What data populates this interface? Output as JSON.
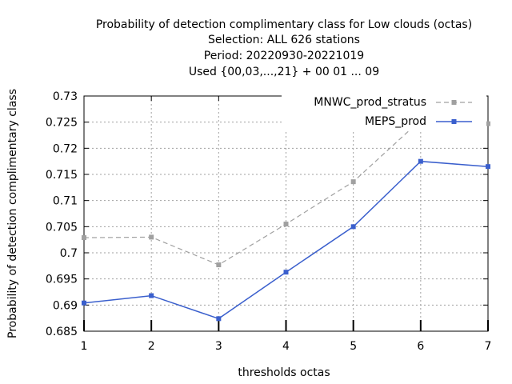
{
  "chart_data": {
    "type": "line",
    "title": [
      "Probability of detection complimentary class  for Low clouds (octas)",
      "Selection: ALL    626 stations",
      "Period: 20220930-20221019",
      "Used {00,03,...,21} + 00 01 ... 09"
    ],
    "xlabel": "thresholds octas",
    "ylabel": "Probability of detection complimentary class",
    "x": [
      1,
      2,
      3,
      4,
      5,
      6,
      7
    ],
    "xlim": [
      1,
      7
    ],
    "ylim": [
      0.685,
      0.73
    ],
    "yticks": [
      "0.685",
      "0.69",
      "0.695",
      "0.7",
      "0.705",
      "0.71",
      "0.715",
      "0.72",
      "0.725",
      "0.73"
    ],
    "xticks": [
      "1",
      "2",
      "3",
      "4",
      "5",
      "6",
      "7"
    ],
    "grid": true,
    "legend_position": "top-right",
    "series": [
      {
        "name": "MNWC_prod_stratus",
        "color": "#a0a0a0",
        "dash": true,
        "values": [
          0.7029,
          0.703,
          0.6977,
          0.7055,
          0.7136,
          0.7254,
          0.7247
        ]
      },
      {
        "name": "MEPS_prod",
        "color": "#3a5fcd",
        "dash": false,
        "values": [
          0.6904,
          0.6918,
          0.6874,
          0.6963,
          0.705,
          0.7175,
          0.7165
        ]
      }
    ]
  }
}
